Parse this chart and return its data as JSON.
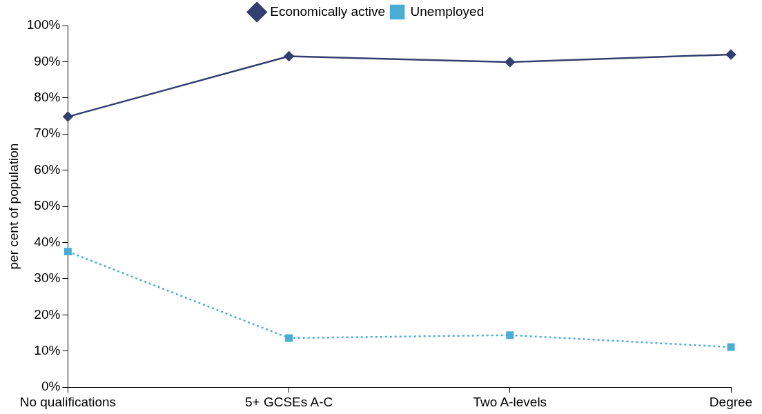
{
  "chart_data": {
    "type": "line",
    "ylabel": "per cent of population",
    "categories": [
      "No qualifications",
      "5+ GCSEs A-C",
      "Two A-levels",
      "Degree"
    ],
    "series": [
      {
        "name": "Economically active",
        "color": "#333f6e",
        "values": [
          74.8,
          91.5,
          89.9,
          92
        ],
        "marker": "diamond",
        "line_style": "solid"
      },
      {
        "name": "Unemployed",
        "color": "#4bacd6",
        "values": [
          37.5,
          13.6,
          14.4,
          11.1
        ],
        "marker": "square",
        "line_style": "dotted"
      }
    ],
    "ylim": [
      0,
      100
    ],
    "yticks": [
      {
        "value": 0,
        "label": "0%"
      },
      {
        "value": 10,
        "label": "10%"
      },
      {
        "value": 20,
        "label": "20%"
      },
      {
        "value": 30,
        "label": "30%"
      },
      {
        "value": 40,
        "label": "40%"
      },
      {
        "value": 50,
        "label": "50%"
      },
      {
        "value": 60,
        "label": "60%"
      },
      {
        "value": 70,
        "label": "70%"
      },
      {
        "value": 80,
        "label": "80%"
      },
      {
        "value": 90,
        "label": "90%"
      },
      {
        "value": 100,
        "label": "100%"
      }
    ],
    "grid": false,
    "legend": "top"
  }
}
